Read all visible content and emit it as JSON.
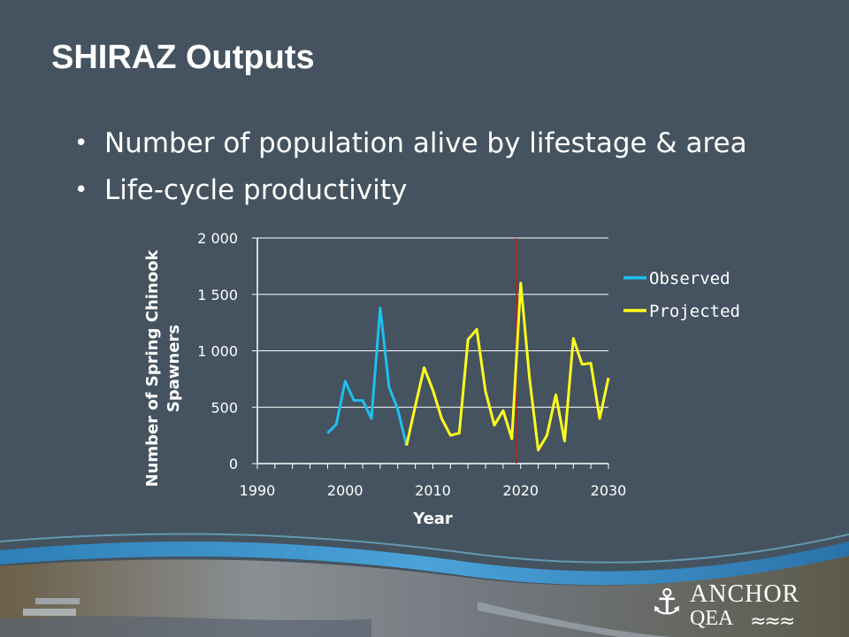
{
  "slide": {
    "title": "SHIRAZ Outputs",
    "bullets": [
      "Number of population alive by lifestage & area",
      "Life-cycle productivity"
    ]
  },
  "logo": {
    "name": "ANCHOR",
    "sub": "QEA",
    "icon": "anchor-icon"
  },
  "colors": {
    "background": "#44535f",
    "observed": "#1ec0ef",
    "projected": "#ffff1e",
    "divider": "#b22222",
    "axis": "#ffffff",
    "footer_wave": "#3c8fc4"
  },
  "chart_data": {
    "type": "line",
    "xlabel": "Year",
    "ylabel": "Number of Spring Chinook Spawners",
    "xlim": [
      1990,
      2030
    ],
    "ylim": [
      0,
      2000
    ],
    "x_ticks": [
      1990,
      2000,
      2010,
      2020,
      2030
    ],
    "y_ticks": [
      0,
      500,
      1000,
      1500,
      2000
    ],
    "x_tick_labels": [
      "1990",
      "2000",
      "2010",
      "2020",
      "2030"
    ],
    "y_tick_labels": [
      "0",
      "500",
      "1 000",
      "1 500",
      "2 000"
    ],
    "grid": "horizontal",
    "legend": "right",
    "vertical_marker_x": 2019.5,
    "series": [
      {
        "name": "Observed",
        "color": "#1ec0ef",
        "x": [
          1998,
          1999,
          2000,
          2001,
          2002,
          2003,
          2004,
          2005,
          2006,
          2007
        ],
        "y": [
          270,
          350,
          730,
          560,
          560,
          400,
          1380,
          680,
          480,
          160
        ]
      },
      {
        "name": "Projected",
        "color": "#ffff1e",
        "x": [
          2007,
          2008,
          2009,
          2010,
          2011,
          2012,
          2013,
          2014,
          2015,
          2016,
          2017,
          2018,
          2019,
          2020,
          2021,
          2022,
          2023,
          2024,
          2025,
          2026,
          2027,
          2028,
          2029,
          2030
        ],
        "y": [
          160,
          510,
          850,
          650,
          400,
          250,
          270,
          1100,
          1190,
          640,
          340,
          470,
          220,
          1600,
          760,
          120,
          250,
          610,
          200,
          1110,
          880,
          890,
          400,
          760
        ]
      }
    ]
  }
}
